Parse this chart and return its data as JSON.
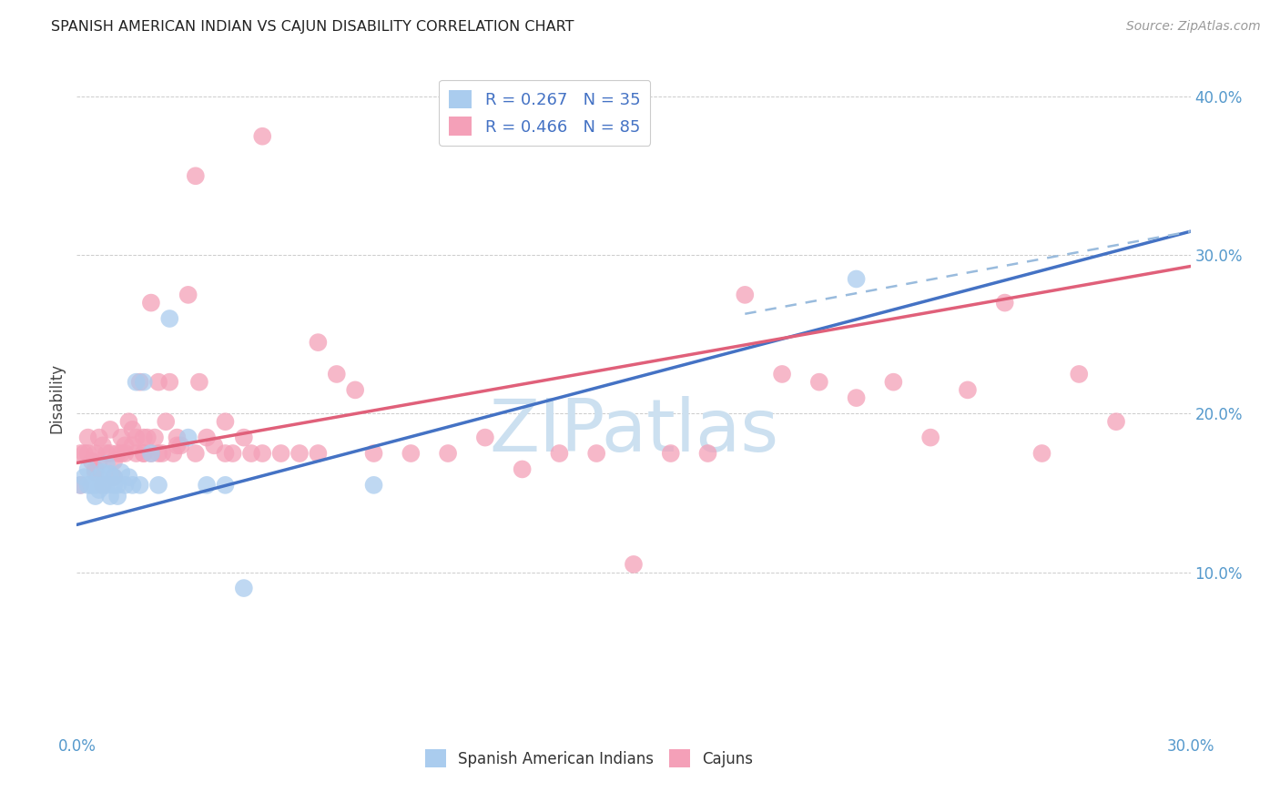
{
  "title": "SPANISH AMERICAN INDIAN VS CAJUN DISABILITY CORRELATION CHART",
  "source": "Source: ZipAtlas.com",
  "ylabel": "Disability",
  "xlabel_blue": "Spanish American Indians",
  "xlabel_pink": "Cajuns",
  "legend_blue": "R = 0.267   N = 35",
  "legend_pink": "R = 0.466   N = 85",
  "xlim": [
    0.0,
    0.3
  ],
  "ylim": [
    0.0,
    0.42
  ],
  "xticks": [
    0.0,
    0.05,
    0.1,
    0.15,
    0.2,
    0.25,
    0.3
  ],
  "yticks": [
    0.0,
    0.1,
    0.2,
    0.3,
    0.4
  ],
  "ytick_labels_right": [
    "",
    "10.0%",
    "20.0%",
    "30.0%",
    "40.0%"
  ],
  "blue_color": "#aaccee",
  "blue_line_color": "#4472c4",
  "pink_color": "#f4a0b8",
  "pink_line_color": "#e0607a",
  "dashed_line_color": "#99bbdd",
  "watermark_color": "#cce0f0",
  "background_color": "#ffffff",
  "grid_color": "#cccccc",
  "blue_points_x": [
    0.001,
    0.002,
    0.003,
    0.003,
    0.004,
    0.005,
    0.005,
    0.006,
    0.006,
    0.007,
    0.007,
    0.008,
    0.008,
    0.009,
    0.009,
    0.01,
    0.01,
    0.011,
    0.011,
    0.012,
    0.013,
    0.014,
    0.015,
    0.016,
    0.017,
    0.018,
    0.02,
    0.022,
    0.025,
    0.03,
    0.035,
    0.04,
    0.045,
    0.08,
    0.21
  ],
  "blue_points_y": [
    0.155,
    0.16,
    0.165,
    0.155,
    0.155,
    0.155,
    0.148,
    0.16,
    0.152,
    0.163,
    0.155,
    0.168,
    0.155,
    0.162,
    0.148,
    0.16,
    0.155,
    0.155,
    0.148,
    0.163,
    0.155,
    0.16,
    0.155,
    0.22,
    0.155,
    0.22,
    0.175,
    0.155,
    0.26,
    0.185,
    0.155,
    0.155,
    0.09,
    0.155,
    0.285
  ],
  "pink_points_x": [
    0.001,
    0.002,
    0.003,
    0.004,
    0.005,
    0.005,
    0.006,
    0.006,
    0.007,
    0.008,
    0.009,
    0.01,
    0.01,
    0.011,
    0.012,
    0.013,
    0.013,
    0.014,
    0.015,
    0.016,
    0.016,
    0.017,
    0.018,
    0.018,
    0.019,
    0.02,
    0.02,
    0.021,
    0.022,
    0.023,
    0.024,
    0.025,
    0.026,
    0.027,
    0.028,
    0.03,
    0.032,
    0.033,
    0.035,
    0.037,
    0.04,
    0.042,
    0.045,
    0.047,
    0.05,
    0.055,
    0.06,
    0.065,
    0.07,
    0.075,
    0.08,
    0.09,
    0.1,
    0.11,
    0.12,
    0.13,
    0.14,
    0.15,
    0.16,
    0.17,
    0.18,
    0.19,
    0.2,
    0.21,
    0.22,
    0.23,
    0.24,
    0.25,
    0.26,
    0.27,
    0.28,
    0.001,
    0.003,
    0.005,
    0.007,
    0.009,
    0.012,
    0.015,
    0.018,
    0.022,
    0.027,
    0.032,
    0.04,
    0.05,
    0.065
  ],
  "pink_points_y": [
    0.175,
    0.175,
    0.185,
    0.17,
    0.175,
    0.163,
    0.185,
    0.17,
    0.18,
    0.175,
    0.19,
    0.17,
    0.16,
    0.175,
    0.185,
    0.18,
    0.175,
    0.195,
    0.19,
    0.185,
    0.175,
    0.22,
    0.185,
    0.175,
    0.185,
    0.27,
    0.175,
    0.185,
    0.22,
    0.175,
    0.195,
    0.22,
    0.175,
    0.185,
    0.18,
    0.275,
    0.175,
    0.22,
    0.185,
    0.18,
    0.195,
    0.175,
    0.185,
    0.175,
    0.175,
    0.175,
    0.175,
    0.245,
    0.225,
    0.215,
    0.175,
    0.175,
    0.175,
    0.185,
    0.165,
    0.175,
    0.175,
    0.105,
    0.175,
    0.175,
    0.275,
    0.225,
    0.22,
    0.21,
    0.22,
    0.185,
    0.215,
    0.27,
    0.175,
    0.225,
    0.195,
    0.155,
    0.175,
    0.165,
    0.155,
    0.175,
    0.175,
    0.18,
    0.175,
    0.175,
    0.18,
    0.35,
    0.175,
    0.375,
    0.175
  ],
  "blue_line_x0": 0.0,
  "blue_line_y0": 0.13,
  "blue_line_x1": 0.3,
  "blue_line_y1": 0.315,
  "pink_line_x0": 0.0,
  "pink_line_y0": 0.169,
  "pink_line_x1": 0.3,
  "pink_line_y1": 0.293
}
